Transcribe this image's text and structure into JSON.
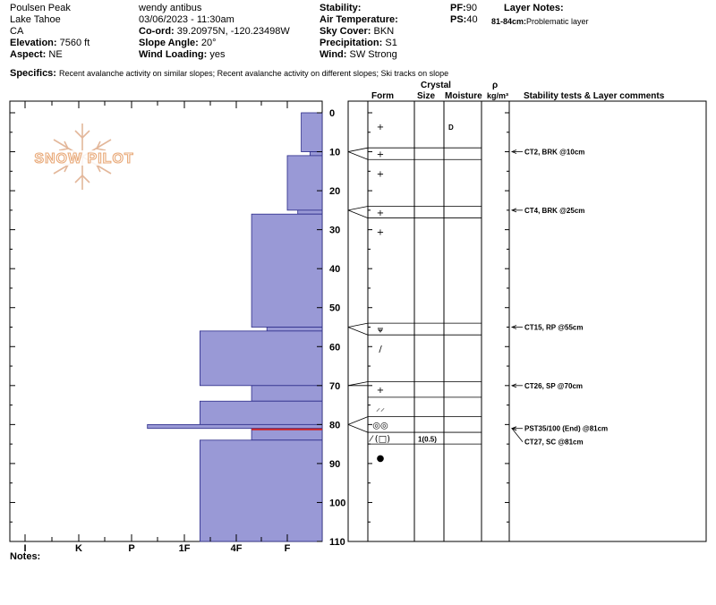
{
  "site": {
    "location": "Poulsen Peak",
    "area": "Lake Tahoe",
    "state": "CA",
    "elevation_label": "Elevation:",
    "elevation": "7560 ft",
    "aspect_label": "Aspect:",
    "aspect": "NE"
  },
  "observation": {
    "observer": "wendy antibus",
    "datetime": "03/06/2023 - 11:30am",
    "coord_label": "Co-ord:",
    "coord": "39.20975N, -120.23498W",
    "slope_label": "Slope Angle:",
    "slope": "20°",
    "wind_loading_label": "Wind Loading:",
    "wind_loading": "yes"
  },
  "conditions": {
    "stability_label": "Stability:",
    "stability": "",
    "air_temp_label": "Air Temperature:",
    "air_temp": "",
    "sky_label": "Sky Cover:",
    "sky": "BKN",
    "precip_label": "Precipitation:",
    "precip": "S1",
    "wind_label": "Wind:",
    "wind": "SW Strong"
  },
  "penetration": {
    "pf_label": "PF:",
    "pf": "90",
    "ps_label": "PS:",
    "ps": "40"
  },
  "layer_notes": {
    "title": "Layer Notes:",
    "items": [
      {
        "range": "81-84cm:",
        "text": "Problematic layer"
      }
    ]
  },
  "specifics": {
    "label": "Specifics:",
    "text": "Recent avalanche activity on similar slopes; Recent avalanche activity on different slopes; Ski tracks on slope"
  },
  "table_headers": {
    "crystal": "Crystal",
    "form": "Form",
    "size": "Size",
    "moisture": "Moisture",
    "rho": "ρ",
    "density": "kg/m³",
    "tests": "Stability tests & Layer comments"
  },
  "logo_text": "SNOW PILOT",
  "notes_label": "Notes:",
  "hardness_scale": [
    "I",
    "K",
    "P",
    "1F",
    "4F",
    "F"
  ],
  "colors": {
    "layer_fill": "#9999d6",
    "layer_stroke": "#2a2a88",
    "weak_layer": "#cc2222",
    "logo": "#e8a877"
  },
  "chart_data": {
    "type": "hardness_profile",
    "depth_unit": "cm",
    "depth_axis": {
      "min": 0,
      "max": 110,
      "ticks": [
        0,
        10,
        20,
        30,
        40,
        50,
        60,
        70,
        80,
        90,
        100,
        110
      ]
    },
    "hardness_axis": {
      "levels": [
        "F",
        "4F",
        "1F",
        "P",
        "K",
        "I"
      ],
      "direction": "right-to-left"
    },
    "layers": [
      {
        "top": 0,
        "bottom": 10,
        "hardness": 0.6
      },
      {
        "top": 10,
        "bottom": 11,
        "hardness": 0.35
      },
      {
        "top": 11,
        "bottom": 25,
        "hardness": 1.0
      },
      {
        "top": 25,
        "bottom": 26,
        "hardness": 0.7
      },
      {
        "top": 26,
        "bottom": 55,
        "hardness": 1.7
      },
      {
        "top": 55,
        "bottom": 56,
        "hardness": 1.4
      },
      {
        "top": 56,
        "bottom": 70,
        "hardness": 2.7
      },
      {
        "top": 70,
        "bottom": 74,
        "hardness": 1.7
      },
      {
        "top": 74,
        "bottom": 80,
        "hardness": 2.7
      },
      {
        "top": 80,
        "bottom": 81,
        "hardness": 3.7
      },
      {
        "top": 81,
        "bottom": 84,
        "hardness": 1.7,
        "weak": true
      },
      {
        "top": 84,
        "bottom": 110,
        "hardness": 2.7
      }
    ],
    "table_rows": [
      {
        "top": 0,
        "bottom": 9,
        "form": "+",
        "size": "",
        "moisture": "D"
      },
      {
        "top": 9,
        "bottom": 12,
        "form": "+",
        "size": "",
        "moisture": ""
      },
      {
        "top": 12,
        "bottom": 24,
        "form": "+",
        "size": "",
        "moisture": ""
      },
      {
        "top": 24,
        "bottom": 27,
        "form": "+",
        "size": "",
        "moisture": ""
      },
      {
        "top": 27,
        "bottom": 54,
        "form": "+",
        "size": "",
        "moisture": ""
      },
      {
        "top": 54,
        "bottom": 57,
        "form": "ᴪ",
        "size": "",
        "moisture": ""
      },
      {
        "top": 57,
        "bottom": 69,
        "form": "/",
        "size": "",
        "moisture": ""
      },
      {
        "top": 69,
        "bottom": 73,
        "form": "+",
        "size": "",
        "moisture": ""
      },
      {
        "top": 73,
        "bottom": 78,
        "form": "⸝⸝",
        "size": "",
        "moisture": ""
      },
      {
        "top": 78,
        "bottom": 82,
        "form": "◎◎",
        "size": "",
        "moisture": ""
      },
      {
        "top": 82,
        "bottom": 85,
        "form": "⁄ (□)",
        "size": "1(0.5)",
        "moisture": ""
      },
      {
        "top": 85,
        "bottom": 110,
        "form": "●",
        "size": "",
        "moisture": ""
      }
    ],
    "tests": [
      {
        "depth": 10,
        "text": "CT2, BRK @10cm"
      },
      {
        "depth": 25,
        "text": "CT4, BRK @25cm"
      },
      {
        "depth": 55,
        "text": "CT15, RP @55cm"
      },
      {
        "depth": 70,
        "text": "CT26, SP @70cm"
      },
      {
        "depth": 81,
        "text": "PST35/100 (End) @81cm"
      },
      {
        "depth": 81,
        "text": "CT27, SC @81cm"
      }
    ]
  }
}
